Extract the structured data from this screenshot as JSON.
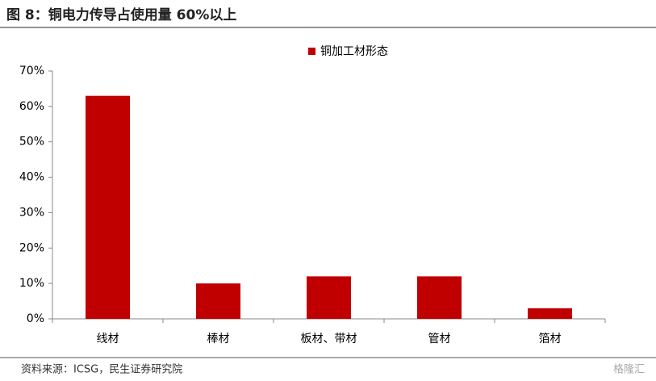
{
  "chart_data": {
    "type": "bar",
    "title": "图 8：铜电力传导占使用量 60%以上",
    "series": [
      {
        "name": "铜加工材形态",
        "color": "#c00000",
        "values": [
          63,
          10,
          12,
          12,
          3
        ]
      }
    ],
    "categories": [
      "线材",
      "棒材",
      "板材、带材",
      "管材",
      "箔材"
    ],
    "ylim": [
      0,
      70
    ],
    "yticks": [
      {
        "value": 0,
        "label": "0%"
      },
      {
        "value": 10,
        "label": "10%"
      },
      {
        "value": 20,
        "label": "20%"
      },
      {
        "value": 30,
        "label": "30%"
      },
      {
        "value": 40,
        "label": "40%"
      },
      {
        "value": 50,
        "label": "50%"
      },
      {
        "value": 60,
        "label": "60%"
      },
      {
        "value": 70,
        "label": "70%"
      }
    ],
    "source": "资料来源：ICSG，民生证券研究院",
    "watermark": "格隆汇"
  }
}
